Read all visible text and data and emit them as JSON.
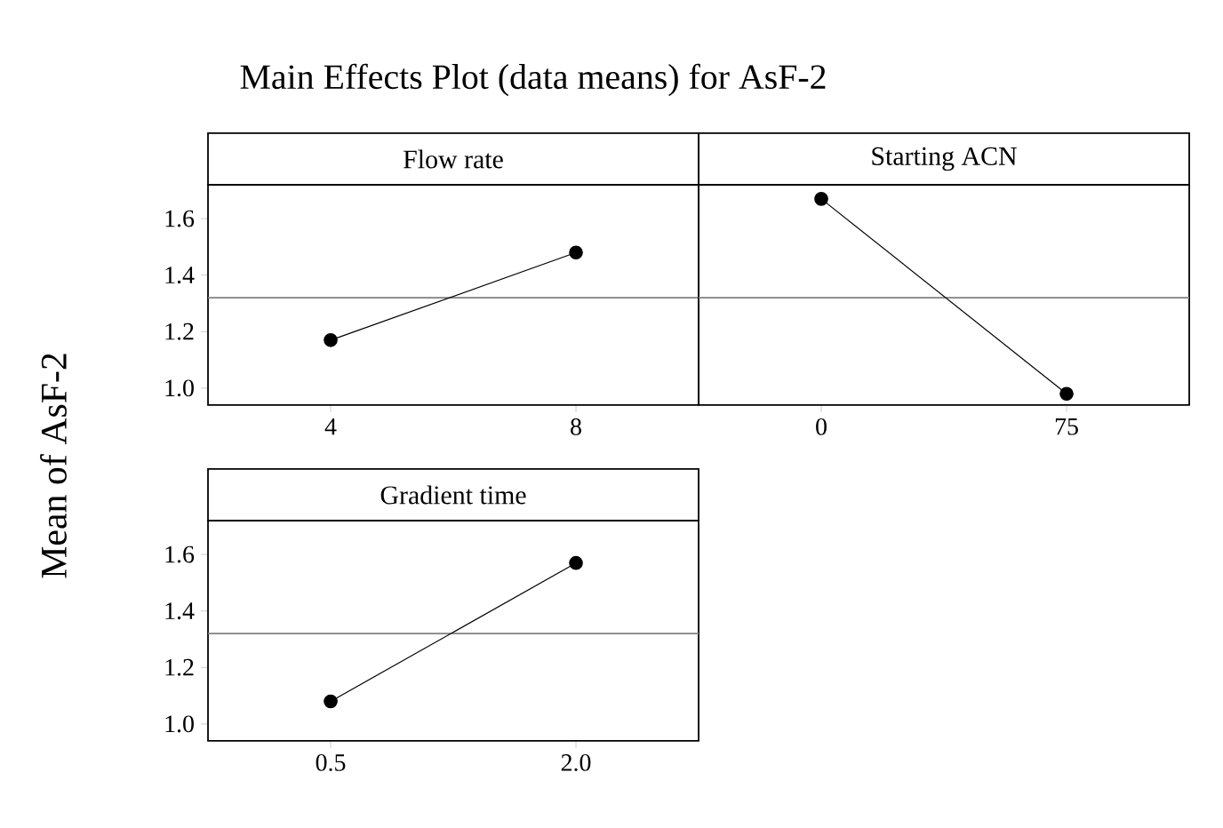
{
  "chart_data": [
    {
      "type": "line",
      "title": "Flow rate",
      "ylabel": "Mean of AsF-2",
      "annotations": [
        "Main Effects Plot (data means) for AsF-2"
      ],
      "categories": [
        "4",
        "8"
      ],
      "values": [
        1.17,
        1.48
      ],
      "color": "#000000",
      "marker": "circle",
      "ylim": [
        0.94,
        1.72
      ],
      "yticks": [
        {
          "value": 1.0,
          "label": "1.0"
        },
        {
          "value": 1.2,
          "label": "1.2"
        },
        {
          "value": 1.4,
          "label": "1.4"
        },
        {
          "value": 1.6,
          "label": "1.6"
        }
      ],
      "ref_lines": [
        {
          "axis": "y",
          "value": 1.32,
          "color": "#808080"
        }
      ]
    },
    {
      "type": "line",
      "title": "Starting ACN",
      "categories": [
        "0",
        "75"
      ],
      "values": [
        1.67,
        0.98
      ],
      "color": "#000000",
      "marker": "circle",
      "ylim": [
        0.94,
        1.72
      ],
      "tick_labels": "x",
      "ref_lines": [
        {
          "axis": "y",
          "value": 1.32,
          "color": "#808080"
        }
      ]
    },
    {
      "type": "line",
      "title": "Gradient time",
      "categories": [
        "0.5",
        "2.0"
      ],
      "values": [
        1.08,
        1.57
      ],
      "color": "#000000",
      "marker": "circle",
      "ylim": [
        0.94,
        1.72
      ],
      "yticks": [
        {
          "value": 1.0,
          "label": "1.0"
        },
        {
          "value": 1.2,
          "label": "1.2"
        },
        {
          "value": 1.4,
          "label": "1.4"
        },
        {
          "value": 1.6,
          "label": "1.6"
        }
      ],
      "ref_lines": [
        {
          "axis": "y",
          "value": 1.32,
          "color": "#808080"
        }
      ]
    }
  ]
}
